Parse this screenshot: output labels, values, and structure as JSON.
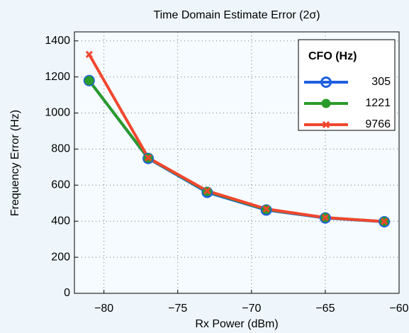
{
  "chart_data": {
    "type": "line",
    "title": "Time Domain Estimate Error (2σ)",
    "x_label": "Rx Power (dBm)",
    "y_label": "Frequency Error (Hz)",
    "legend_title": "CFO (Hz)",
    "legend_position": "upper right",
    "grid": true,
    "x": [
      -81,
      -77,
      -73,
      -69,
      -65,
      -61
    ],
    "series": [
      {
        "name": "305",
        "color": "#1f5fe0",
        "marker": "open-circle",
        "values": [
          1180,
          748,
          560,
          462,
          418,
          397
        ]
      },
      {
        "name": "1221",
        "color": "#2a9a2a",
        "marker": "filled-circle",
        "values": [
          1180,
          750,
          565,
          465,
          420,
          398
        ]
      },
      {
        "name": "9766",
        "color": "#f2462e",
        "marker": "x",
        "values": [
          1325,
          752,
          568,
          468,
          420,
          398
        ]
      }
    ],
    "xlim": [
      -82,
      -60
    ],
    "xticks": [
      {
        "value": -80,
        "label": "−80"
      },
      {
        "value": -75,
        "label": "−75"
      },
      {
        "value": -70,
        "label": "−70"
      },
      {
        "value": -65,
        "label": "−65"
      },
      {
        "value": -60,
        "label": "−60"
      }
    ],
    "ylim": [
      0,
      1450
    ],
    "yticks": [
      0,
      200,
      400,
      600,
      800,
      1000,
      1200,
      1400
    ]
  }
}
